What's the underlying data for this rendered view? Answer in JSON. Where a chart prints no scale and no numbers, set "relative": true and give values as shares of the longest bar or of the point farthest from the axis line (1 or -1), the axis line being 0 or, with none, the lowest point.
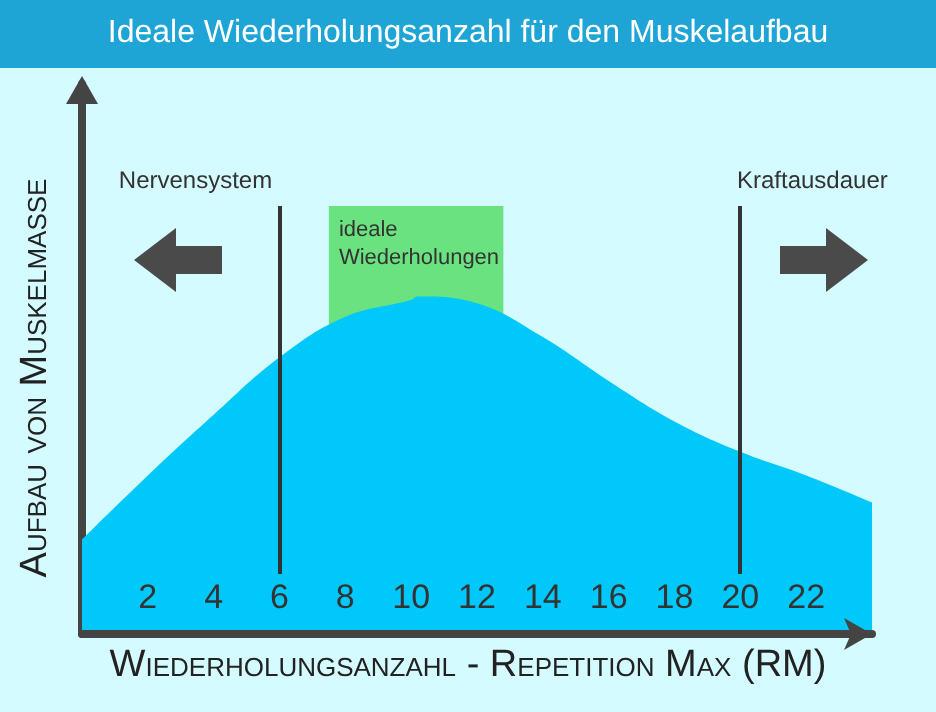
{
  "chart_data": {
    "type": "area",
    "title": "Ideale Wiederholungsanzahl für den Muskelaufbau",
    "xlabel": "Wiederholungsanzahl - Repetition Max (RM)",
    "ylabel": "Aufbau von Muskelmasse",
    "relative": true,
    "x": [
      0,
      2,
      4,
      6,
      8,
      10,
      10.2,
      12,
      14,
      16,
      18,
      20,
      22,
      24
    ],
    "series": [
      {
        "color": "#00c8fa",
        "values": [
          0.28,
          0.47,
          0.65,
          0.82,
          0.94,
          0.99,
          1,
          0.98,
          0.88,
          0.75,
          0.63,
          0.54,
          0.47,
          0.39
        ]
      }
    ],
    "xlim": [
      0,
      24
    ],
    "xticks": [
      2,
      4,
      6,
      8,
      10,
      12,
      14,
      16,
      18,
      20,
      22
    ],
    "grid": false,
    "ref_lines": [
      {
        "axis": "x",
        "value": 6,
        "label": "Nervensystem",
        "color": "#333333"
      },
      {
        "axis": "x",
        "value": 20,
        "label": "Kraftausdauer",
        "color": "#333333"
      }
    ],
    "bands": [
      {
        "axis": "x",
        "from": 7.5,
        "to": 12.8,
        "label": "ideale Wiederholungen",
        "color": "#00ca00"
      }
    ]
  }
}
